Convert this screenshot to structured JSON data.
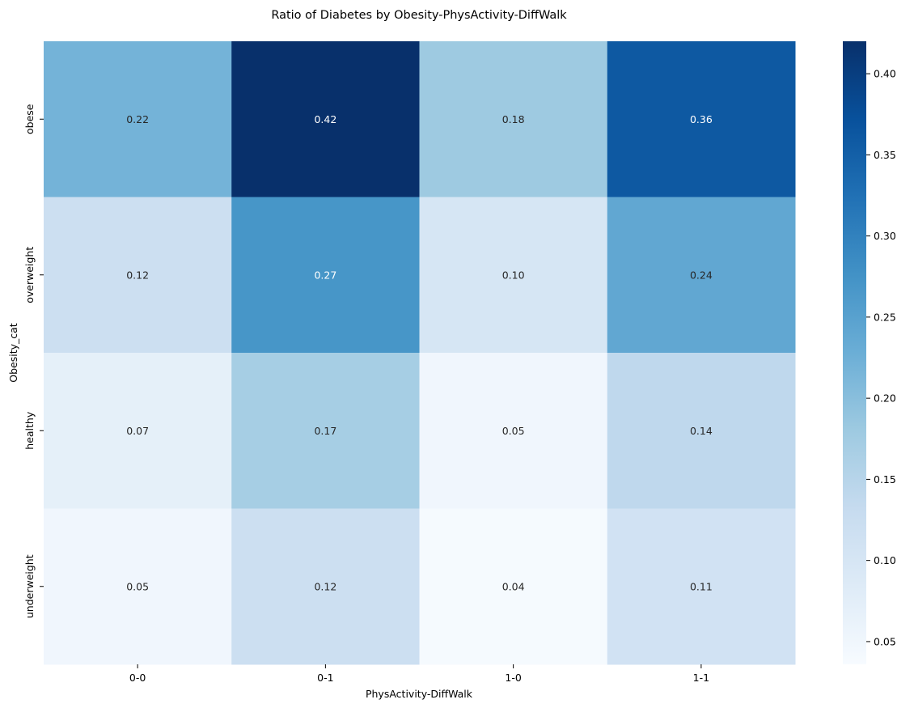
{
  "chart_data": {
    "type": "heatmap",
    "title": "Ratio of Diabetes by Obesity-PhysActivity-DiffWalk",
    "xlabel": "PhysActivity-DiffWalk",
    "ylabel": "Obesity_cat",
    "x_categories": [
      "0-0",
      "0-1",
      "1-0",
      "1-1"
    ],
    "y_categories": [
      "obese",
      "overweight",
      "healthy",
      "underweight"
    ],
    "values": [
      [
        0.22,
        0.42,
        0.18,
        0.36
      ],
      [
        0.12,
        0.27,
        0.1,
        0.24
      ],
      [
        0.07,
        0.17,
        0.05,
        0.14
      ],
      [
        0.05,
        0.12,
        0.04,
        0.11
      ]
    ],
    "value_labels": [
      [
        "0.22",
        "0.42",
        "0.18",
        "0.36"
      ],
      [
        "0.12",
        "0.27",
        "0.10",
        "0.24"
      ],
      [
        "0.07",
        "0.17",
        "0.05",
        "0.14"
      ],
      [
        "0.05",
        "0.12",
        "0.04",
        "0.11"
      ]
    ],
    "colormap": "Blues",
    "color_range": [
      0.036,
      0.42
    ],
    "colorbar": {
      "ticks": [
        0.05,
        0.1,
        0.15,
        0.2,
        0.25,
        0.3,
        0.35,
        0.4
      ],
      "tick_labels": [
        "0.05",
        "0.10",
        "0.15",
        "0.20",
        "0.25",
        "0.30",
        "0.35",
        "0.40"
      ]
    },
    "annotations": true,
    "grid": false
  }
}
